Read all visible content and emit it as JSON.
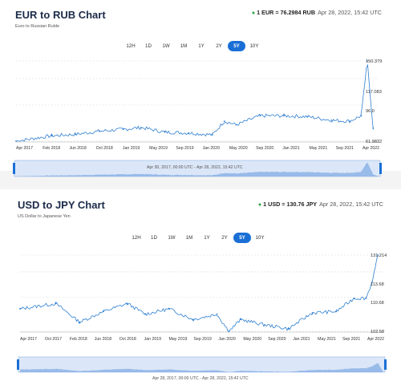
{
  "range_buttons": [
    "12H",
    "1D",
    "1W",
    "1M",
    "1Y",
    "2Y",
    "5Y",
    "10Y"
  ],
  "active_range": "5Y",
  "colors": {
    "accent": "#1a6fd6",
    "line": "#2f7fd1",
    "up": "#2e9e3e"
  },
  "eur": {
    "title": "EUR to RUB Chart",
    "subtitle": "Euro to Russian Ruble",
    "rate_label": "1 EUR = 76.2984 RUB",
    "timestamp": "Apr 28, 2022, 15:42 UTC",
    "footer_range": "Apr 30, 2017, 00:00 UTC - Apr 28, 2022, 15:42 UTC",
    "x_labels": [
      "Apr 2017",
      "Feb 2018",
      "Jun 2018",
      "Oct 2018",
      "Jan 2019",
      "May 2019",
      "Sep 2019",
      "Jan 2020",
      "May 2020",
      "Sep 2020",
      "Jan 2021",
      "May 2021",
      "Sep 2021",
      "Apr 2022"
    ],
    "value_labels": [
      "150.379",
      "117.083",
      "96.0",
      "61.9832"
    ]
  },
  "usd": {
    "title": "USD to JPY Chart",
    "subtitle": "US Dollar to Japanese Yen",
    "rate_label": "1 USD = 130.76 JPY",
    "timestamp": "Apr 28, 2022, 15:42 UTC",
    "footer_range": "Apr 28, 2017, 00:00 UTC - Apr 28, 2022, 15:42 UTC",
    "x_labels": [
      "Apr 2017",
      "Oct 2017",
      "Feb 2018",
      "Jun 2018",
      "Oct 2018",
      "Jan 2019",
      "May 2019",
      "Sep 2019",
      "Jan 2020",
      "May 2020",
      "Sep 2020",
      "Jan 2021",
      "May 2021",
      "Sep 2021",
      "Apr 2022"
    ],
    "value_labels": [
      "131.214",
      "113.68",
      "110.68",
      "102.58"
    ]
  },
  "chart_data": [
    {
      "type": "line",
      "title": "EUR to RUB Chart",
      "series": [
        {
          "name": "EUR to RUB",
          "x": [
            "2017-04",
            "2017-10",
            "2018-02",
            "2018-06",
            "2018-10",
            "2019-01",
            "2019-05",
            "2019-09",
            "2020-01",
            "2020-03",
            "2020-05",
            "2020-09",
            "2021-01",
            "2021-05",
            "2021-09",
            "2021-12",
            "2022-02",
            "2022-03",
            "2022-04"
          ],
          "values": [
            61.98,
            68,
            69.5,
            73,
            75,
            77,
            72,
            71,
            69,
            84,
            80,
            90,
            90,
            89,
            85,
            84,
            90,
            150.379,
            76.2984
          ]
        }
      ],
      "ylim": [
        61.9832,
        150.379
      ]
    },
    {
      "type": "line",
      "title": "USD to JPY Chart",
      "series": [
        {
          "name": "USD to JPY",
          "x": [
            "2017-04",
            "2017-10",
            "2018-02",
            "2018-06",
            "2018-10",
            "2019-01",
            "2019-05",
            "2019-09",
            "2020-01",
            "2020-03",
            "2020-05",
            "2020-09",
            "2021-01",
            "2021-05",
            "2021-09",
            "2021-12",
            "2022-02",
            "2022-03",
            "2022-04"
          ],
          "values": [
            111,
            113,
            106,
            110,
            113,
            109,
            111,
            107,
            109,
            102.58,
            107,
            105,
            103.5,
            109.5,
            110,
            115,
            115,
            121,
            131.214
          ]
        }
      ],
      "ylim": [
        102.58,
        131.214
      ]
    }
  ]
}
